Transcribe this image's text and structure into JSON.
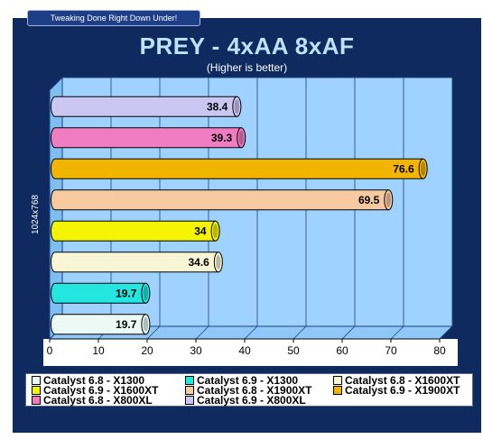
{
  "banner": "Tweaking Done Right Down Under!",
  "chart_data": {
    "type": "bar",
    "orientation": "horizontal",
    "title": "PREY - 4xAA 8xAF",
    "subtitle": "(Higher is better)",
    "ylabel": "1024x768",
    "xlim": [
      0,
      80
    ],
    "xticks": [
      0,
      10,
      20,
      30,
      40,
      50,
      60,
      70,
      80
    ],
    "grid": true,
    "legend_position": "bottom",
    "series": [
      {
        "name": "Catalyst 6.8 - X1300",
        "value": 19.7,
        "color": "#ecfaf6"
      },
      {
        "name": "Catalyst 6.9 - X1300",
        "value": 19.7,
        "color": "#22e6df"
      },
      {
        "name": "Catalyst 6.8 - X1600XT",
        "value": 34.6,
        "color": "#f8f6d4"
      },
      {
        "name": "Catalyst 6.9 - X1600XT",
        "value": 34,
        "color": "#f5f400"
      },
      {
        "name": "Catalyst 6.8 - X1900XT",
        "value": 69.5,
        "color": "#f7caa2"
      },
      {
        "name": "Catalyst 6.9 - X1900XT",
        "value": 76.6,
        "color": "#f2b400"
      },
      {
        "name": "Catalyst 6.8 - X800XL",
        "value": 39.3,
        "color": "#f07cc2"
      },
      {
        "name": "Catalyst 6.9 - X800XL",
        "value": 38.4,
        "color": "#ccc6f2"
      }
    ]
  }
}
